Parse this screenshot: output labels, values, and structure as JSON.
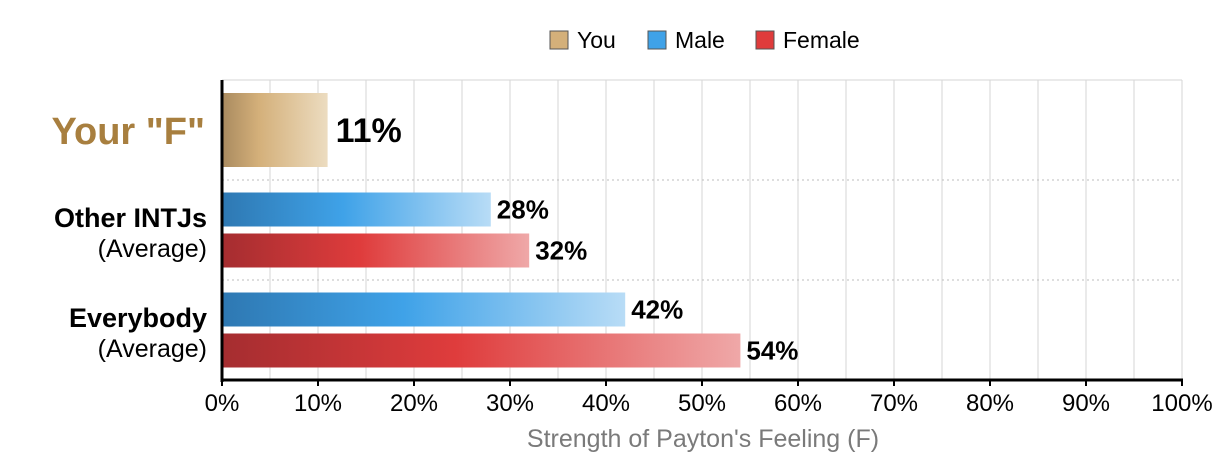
{
  "chart_data": {
    "type": "bar",
    "orientation": "horizontal",
    "xlabel": "Strength of Payton's Feeling (F)",
    "xlim": [
      0,
      100
    ],
    "x_ticks": [
      "0%",
      "10%",
      "20%",
      "30%",
      "40%",
      "50%",
      "60%",
      "70%",
      "80%",
      "90%",
      "100%"
    ],
    "grid": true,
    "legend_position": "top-center",
    "legend": [
      {
        "name": "You",
        "color": "#d4b07a"
      },
      {
        "name": "Male",
        "color": "#3fa2e8"
      },
      {
        "name": "Female",
        "color": "#df3c3c"
      }
    ],
    "groups": [
      {
        "label": "Your \"F\"",
        "sublabel": "",
        "label_color": "#a87f3f",
        "bars": [
          {
            "series": "You",
            "value": 11,
            "label": "11%"
          }
        ]
      },
      {
        "label": "Other INTJs",
        "sublabel": "(Average)",
        "label_color": "#000000",
        "bars": [
          {
            "series": "Male",
            "value": 28,
            "label": "28%"
          },
          {
            "series": "Female",
            "value": 32,
            "label": "32%"
          }
        ]
      },
      {
        "label": "Everybody",
        "sublabel": "(Average)",
        "label_color": "#000000",
        "bars": [
          {
            "series": "Male",
            "value": 42,
            "label": "42%"
          },
          {
            "series": "Female",
            "value": 54,
            "label": "54%"
          }
        ]
      }
    ]
  }
}
